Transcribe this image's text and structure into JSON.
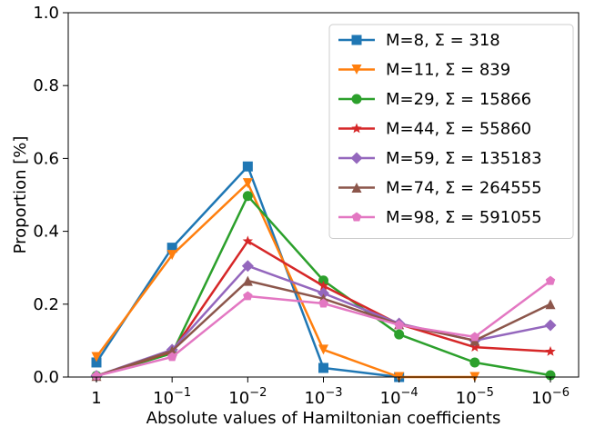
{
  "chart_data": {
    "type": "line",
    "xlabel": "Absolute values of Hamiltonian coefficients",
    "ylabel": "Proportion [%]",
    "categories": [
      {
        "base": "1",
        "exp": ""
      },
      {
        "base": "10",
        "exp": "−1"
      },
      {
        "base": "10",
        "exp": "−2"
      },
      {
        "base": "10",
        "exp": "−3"
      },
      {
        "base": "10",
        "exp": "−4"
      },
      {
        "base": "10",
        "exp": "−5"
      },
      {
        "base": "10",
        "exp": "−6"
      }
    ],
    "ylim": [
      0.0,
      1.0
    ],
    "yticks": [
      "0.0",
      "0.2",
      "0.4",
      "0.6",
      "0.8",
      "1.0"
    ],
    "legend_position": "top-right",
    "grid": false,
    "series": [
      {
        "name": "M=8, Σ = 318",
        "color": "#1f77b4",
        "marker": "square",
        "values": [
          0.04,
          0.355,
          0.578,
          0.025,
          0.0,
          null,
          null
        ]
      },
      {
        "name": "M=11, Σ = 839",
        "color": "#ff7f0e",
        "marker": "triangle-down",
        "values": [
          0.055,
          0.335,
          0.532,
          0.075,
          0.0,
          0.0,
          null
        ]
      },
      {
        "name": "M=29, Σ = 15866",
        "color": "#2ca02c",
        "marker": "circle",
        "values": [
          0.003,
          0.065,
          0.497,
          0.265,
          0.117,
          0.04,
          0.005
        ]
      },
      {
        "name": "M=44, Σ = 55860",
        "color": "#d62728",
        "marker": "star",
        "values": [
          0.003,
          0.07,
          0.373,
          0.25,
          0.145,
          0.082,
          0.07
        ]
      },
      {
        "name": "M=59, Σ = 135183",
        "color": "#9467bd",
        "marker": "diamond",
        "values": [
          0.003,
          0.075,
          0.305,
          0.23,
          0.147,
          0.1,
          0.142
        ]
      },
      {
        "name": "M=74, Σ = 264555",
        "color": "#8c564b",
        "marker": "triangle-up",
        "values": [
          0.003,
          0.072,
          0.264,
          0.215,
          0.145,
          0.1,
          0.2
        ]
      },
      {
        "name": "M=98, Σ = 591055",
        "color": "#e377c2",
        "marker": "pentagon",
        "values": [
          0.003,
          0.055,
          0.222,
          0.202,
          0.143,
          0.11,
          0.264
        ]
      }
    ]
  }
}
